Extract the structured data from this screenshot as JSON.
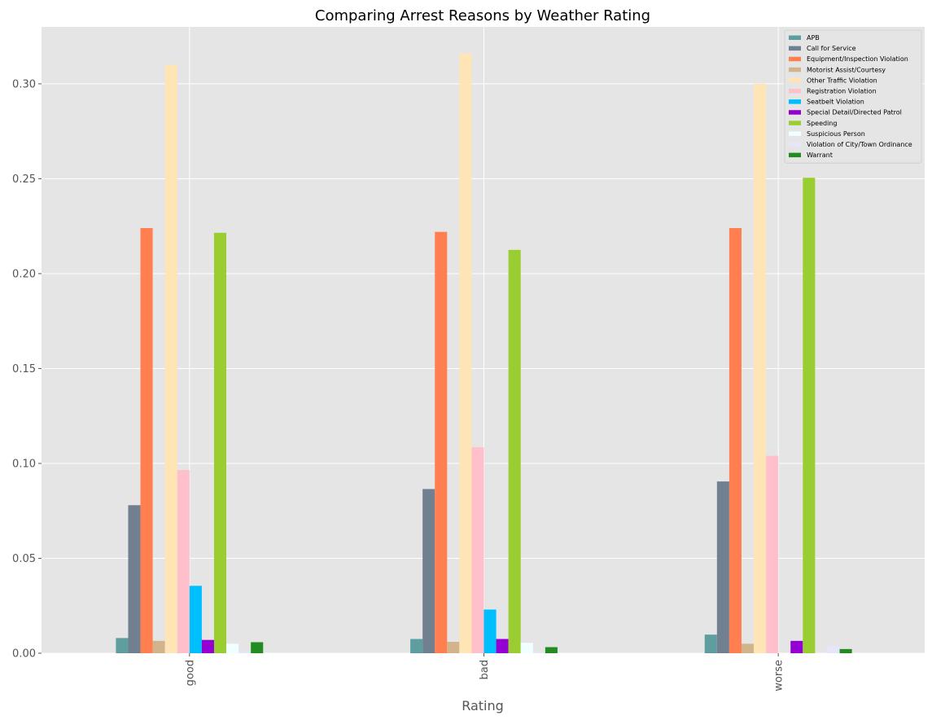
{
  "chart_data": {
    "type": "bar",
    "title": "Comparing Arrest Reasons by Weather Rating",
    "xlabel": "Rating",
    "ylabel": "",
    "categories": [
      "good",
      "bad",
      "worse"
    ],
    "ylim": [
      0,
      0.33
    ],
    "yticks": [
      0.0,
      0.05,
      0.1,
      0.15,
      0.2,
      0.25,
      0.3
    ],
    "ytick_labels": [
      "0.00",
      "0.05",
      "0.10",
      "0.15",
      "0.20",
      "0.25",
      "0.30"
    ],
    "grid": true,
    "legend_position": "top-right",
    "series": [
      {
        "name": "APB",
        "color": "#5f9ea0",
        "values": [
          0.008,
          0.0075,
          0.0098
        ]
      },
      {
        "name": "Call for Service",
        "color": "#708090",
        "values": [
          0.078,
          0.0865,
          0.0905
        ]
      },
      {
        "name": "Equipment/Inspection Violation",
        "color": "#ff7f50",
        "values": [
          0.224,
          0.222,
          0.224
        ]
      },
      {
        "name": "Motorist Assist/Courtesy",
        "color": "#d2b48c",
        "values": [
          0.0065,
          0.006,
          0.005
        ]
      },
      {
        "name": "Other Traffic Violation",
        "color": "#ffe4b5",
        "values": [
          0.31,
          0.316,
          0.3
        ]
      },
      {
        "name": "Registration Violation",
        "color": "#ffc0cb",
        "values": [
          0.0965,
          0.1085,
          0.104
        ]
      },
      {
        "name": "Seatbelt Violation",
        "color": "#00bfff",
        "values": [
          0.0355,
          0.023,
          0.0
        ]
      },
      {
        "name": "Special Detail/Directed Patrol",
        "color": "#9400d3",
        "values": [
          0.007,
          0.0075,
          0.0065
        ]
      },
      {
        "name": "Speeding",
        "color": "#9acd32",
        "values": [
          0.2215,
          0.2125,
          0.2505
        ]
      },
      {
        "name": "Suspicious Person",
        "color": "#f0ffff",
        "values": [
          0.005,
          0.0055,
          0.0
        ]
      },
      {
        "name": "Violation of City/Town Ordinance",
        "color": "#e6e6fa",
        "values": [
          0.001,
          0.0008,
          0.0038
        ]
      },
      {
        "name": "Warrant",
        "color": "#228b22",
        "values": [
          0.0058,
          0.0032,
          0.0022
        ]
      }
    ]
  }
}
